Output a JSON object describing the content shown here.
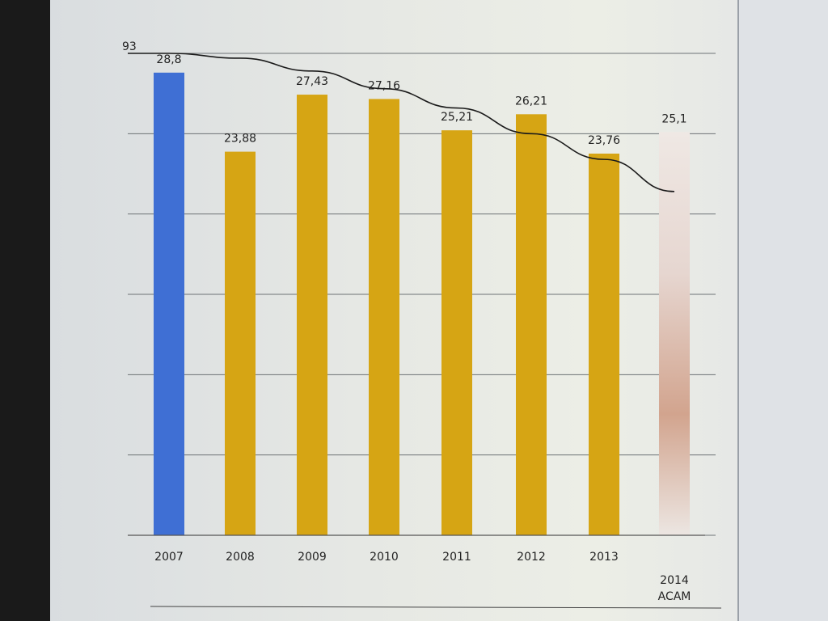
{
  "chart_data": {
    "type": "bar",
    "title": "",
    "xlabel": "",
    "ylabel": "",
    "categories": [
      "2007",
      "2008",
      "2009",
      "2010",
      "2011",
      "2012",
      "2013",
      "2014\nACAM"
    ],
    "values": [
      28.8,
      23.88,
      27.43,
      27.16,
      25.21,
      26.21,
      23.76,
      25.1
    ],
    "value_labels": [
      "28,8",
      "23,88",
      "27,43",
      "27,16",
      "25,21",
      "26,21",
      "23,76",
      "25,1"
    ],
    "bar_colors": [
      "#3f6fd4",
      "#d6a514",
      "#d6a514",
      "#d6a514",
      "#d6a514",
      "#d6a514",
      "#d6a514",
      "gradient-fade"
    ],
    "trendline": {
      "type": "line",
      "color": "#1a1a1a",
      "x": [
        2007,
        2008,
        2009,
        2010,
        2011,
        2012,
        2013,
        2014
      ],
      "y": [
        30,
        29.7,
        28.9,
        27.8,
        26.6,
        25.0,
        23.4,
        21.4
      ]
    },
    "ylim": [
      0,
      30
    ],
    "grid": true,
    "axis_top_label": "93",
    "legend": "none"
  }
}
